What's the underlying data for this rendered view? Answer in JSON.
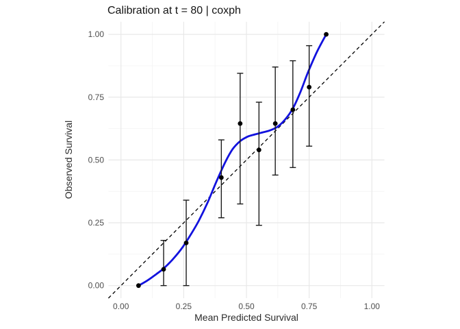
{
  "chart_data": {
    "type": "line",
    "subtype": "calibration-curve-with-error-bars",
    "title": "Calibration at t = 80 | coxph",
    "xlabel": "Mean Predicted Survival",
    "ylabel": "Observed Survival",
    "xlim": [
      -0.05,
      1.05
    ],
    "ylim": [
      -0.05,
      1.05
    ],
    "x_ticks": [
      {
        "value": 0.0,
        "label": "0.00"
      },
      {
        "value": 0.25,
        "label": "0.25"
      },
      {
        "value": 0.5,
        "label": "0.50"
      },
      {
        "value": 0.75,
        "label": "0.75"
      },
      {
        "value": 1.0,
        "label": "1.00"
      }
    ],
    "y_ticks": [
      {
        "value": 0.0,
        "label": "0.00"
      },
      {
        "value": 0.25,
        "label": "0.25"
      },
      {
        "value": 0.5,
        "label": "0.50"
      },
      {
        "value": 0.75,
        "label": "0.75"
      },
      {
        "value": 1.0,
        "label": "1.00"
      }
    ],
    "grid": {
      "major_values": [
        0.0,
        0.25,
        0.5,
        0.75,
        1.0
      ],
      "minor_values": [
        0.125,
        0.375,
        0.625,
        0.875
      ],
      "major_color": "#E8E8E8",
      "minor_color": "#F4F4F4"
    },
    "identity_line": {
      "style": "dashed",
      "color": "#000000",
      "from": -0.05,
      "to": 1.05
    },
    "smooth_curve": {
      "color": "#1212DE",
      "width": 2.8,
      "points": [
        [
          0.07,
          0.0
        ],
        [
          0.105,
          0.02
        ],
        [
          0.14,
          0.045
        ],
        [
          0.17,
          0.068
        ],
        [
          0.205,
          0.103
        ],
        [
          0.24,
          0.145
        ],
        [
          0.275,
          0.198
        ],
        [
          0.31,
          0.258
        ],
        [
          0.345,
          0.33
        ],
        [
          0.38,
          0.413
        ],
        [
          0.415,
          0.49
        ],
        [
          0.445,
          0.543
        ],
        [
          0.475,
          0.575
        ],
        [
          0.505,
          0.593
        ],
        [
          0.535,
          0.602
        ],
        [
          0.565,
          0.61
        ],
        [
          0.595,
          0.618
        ],
        [
          0.625,
          0.633
        ],
        [
          0.655,
          0.662
        ],
        [
          0.685,
          0.705
        ],
        [
          0.715,
          0.77
        ],
        [
          0.745,
          0.848
        ],
        [
          0.78,
          0.928
        ],
        [
          0.818,
          1.0
        ]
      ]
    },
    "points": [
      {
        "x": 0.07,
        "y": 0.0,
        "lo": null,
        "hi": null
      },
      {
        "x": 0.17,
        "y": 0.065,
        "lo": 0.0,
        "hi": 0.18
      },
      {
        "x": 0.26,
        "y": 0.17,
        "lo": 0.0,
        "hi": 0.34
      },
      {
        "x": 0.4,
        "y": 0.43,
        "lo": 0.27,
        "hi": 0.58
      },
      {
        "x": 0.475,
        "y": 0.645,
        "lo": 0.325,
        "hi": 0.845
      },
      {
        "x": 0.55,
        "y": 0.54,
        "lo": 0.24,
        "hi": 0.73
      },
      {
        "x": 0.615,
        "y": 0.645,
        "lo": 0.44,
        "hi": 0.87
      },
      {
        "x": 0.685,
        "y": 0.7,
        "lo": 0.47,
        "hi": 0.895
      },
      {
        "x": 0.75,
        "y": 0.79,
        "lo": 0.555,
        "hi": 0.955
      },
      {
        "x": 0.818,
        "y": 1.0,
        "lo": null,
        "hi": null
      }
    ],
    "point_color": "#000000",
    "errorbar": {
      "color": "#1a1a1a",
      "width": 1.4,
      "cap_halfwidth": 4.5
    },
    "background": "#FFFFFF",
    "legend": "none"
  }
}
